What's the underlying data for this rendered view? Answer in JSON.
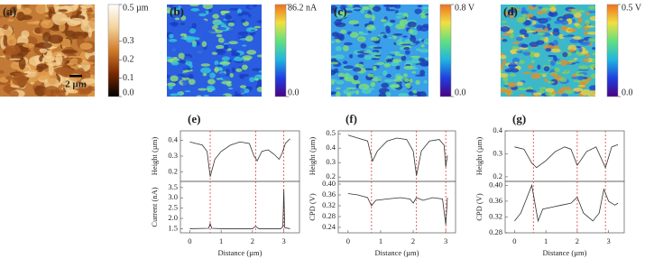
{
  "images": [
    {
      "label": "(a)",
      "scale_bar": "2 µm",
      "clim": [
        0,
        0.5
      ],
      "cmap": [
        "#000000",
        "#7a2a00",
        "#d07a2a",
        "#f3d39c",
        "#ffffff"
      ],
      "cticks": [
        {
          "value": 0.5,
          "label": "0.5 µm"
        },
        0.3,
        0.2,
        0.1,
        {
          "value": 0,
          "label": "0.0"
        }
      ]
    },
    {
      "label": "(b)",
      "clim": [
        0,
        86.2
      ],
      "cmap": [
        "#4b0082",
        "#1f3fe0",
        "#1fb5e0",
        "#60e080",
        "#f0e040",
        "#f07020"
      ],
      "cticks": [
        {
          "value": 86.2,
          "label": "86.2 nA"
        },
        {
          "value": 0,
          "label": "0.0"
        }
      ]
    },
    {
      "label": "(c)",
      "clim": [
        0,
        0.8
      ],
      "cmap": [
        "#4b0082",
        "#1f3fe0",
        "#1fb5e0",
        "#60e080",
        "#f0e040",
        "#f07020"
      ],
      "cticks": [
        {
          "value": 0.8,
          "label": "0.8 V"
        },
        {
          "value": 0,
          "label": "0.0"
        }
      ]
    },
    {
      "label": "(d)",
      "clim": [
        0,
        0.5
      ],
      "cmap": [
        "#4b0082",
        "#1f3fe0",
        "#1fb5e0",
        "#60e080",
        "#f0e040",
        "#f07020"
      ],
      "cticks": [
        {
          "value": 0.5,
          "label": "0.5 V"
        },
        {
          "value": 0,
          "label": "0.0"
        }
      ]
    }
  ],
  "chart_data": [
    {
      "type": "line",
      "title": "(e)",
      "ylabel": "Height (µm)",
      "xlim": [
        -0.3,
        3.5
      ],
      "ylim": [
        0.14,
        0.46
      ],
      "yticks": [
        0.2,
        0.3,
        0.4
      ],
      "vlines": [
        0.65,
        2.1,
        3.0
      ],
      "vline_color": "#e04040",
      "color": "#333333",
      "x": [
        0,
        0.2,
        0.4,
        0.55,
        0.65,
        0.8,
        1.0,
        1.3,
        1.6,
        1.9,
        2.05,
        2.15,
        2.3,
        2.5,
        2.7,
        2.85,
        2.95,
        3.05,
        3.2
      ],
      "values": [
        0.39,
        0.38,
        0.37,
        0.33,
        0.17,
        0.28,
        0.33,
        0.37,
        0.39,
        0.38,
        0.3,
        0.27,
        0.33,
        0.34,
        0.31,
        0.28,
        0.32,
        0.38,
        0.41
      ]
    },
    {
      "type": "line",
      "ylabel": "Current (nA)",
      "xlabel": "Distance (µm)",
      "xlim": [
        -0.3,
        3.5
      ],
      "ylim": [
        1.3,
        3.8
      ],
      "yticks": [
        1.5,
        {
          "value": 2,
          "label": "2.0"
        },
        2.5,
        {
          "value": 3,
          "label": "3.0"
        },
        3.5
      ],
      "xticks": [
        0,
        1,
        2,
        3
      ],
      "vlines": [
        0.65,
        2.1,
        3.0
      ],
      "vline_color": "#e04040",
      "color": "#333333",
      "x": [
        0,
        0.6,
        0.65,
        0.7,
        1.0,
        2.0,
        2.1,
        2.2,
        2.9,
        2.97,
        3.0,
        3.03,
        3.2
      ],
      "values": [
        1.5,
        1.52,
        1.75,
        1.52,
        1.5,
        1.5,
        1.62,
        1.5,
        1.5,
        1.6,
        3.4,
        1.55,
        1.5
      ]
    },
    {
      "type": "line",
      "title": "(f)",
      "ylabel": "Height (µm)",
      "xlim": [
        -0.3,
        3.3
      ],
      "ylim": [
        0.17,
        0.52
      ],
      "yticks": [
        0.2,
        0.3,
        0.4,
        0.5
      ],
      "vlines": [
        0.72,
        2.1,
        3.0
      ],
      "vline_color": "#e04040",
      "color": "#333333",
      "x": [
        0,
        0.3,
        0.6,
        0.75,
        0.9,
        1.2,
        1.5,
        1.8,
        2.0,
        2.1,
        2.25,
        2.5,
        2.8,
        2.95,
        3.0,
        3.05
      ],
      "values": [
        0.49,
        0.47,
        0.45,
        0.31,
        0.38,
        0.45,
        0.47,
        0.46,
        0.38,
        0.21,
        0.38,
        0.45,
        0.46,
        0.42,
        0.27,
        0.35
      ]
    },
    {
      "type": "line",
      "ylabel": "CPD (V)",
      "xlabel": "Distance (µm)",
      "xlim": [
        -0.3,
        3.3
      ],
      "ylim": [
        0.22,
        0.41
      ],
      "yticks": [
        0.24,
        0.28,
        0.32,
        0.36,
        {
          "value": 0.4,
          "label": "0.40"
        }
      ],
      "xticks": [
        0,
        1,
        2,
        3
      ],
      "vlines": [
        0.72,
        2.1,
        3.0
      ],
      "vline_color": "#e04040",
      "color": "#333333",
      "x": [
        0,
        0.3,
        0.6,
        0.72,
        0.85,
        1.2,
        1.6,
        1.9,
        2.0,
        2.1,
        2.3,
        2.6,
        2.9,
        3.0,
        3.05
      ],
      "values": [
        0.365,
        0.36,
        0.35,
        0.32,
        0.34,
        0.345,
        0.35,
        0.345,
        0.33,
        0.35,
        0.34,
        0.35,
        0.345,
        0.25,
        0.35
      ]
    },
    {
      "type": "line",
      "title": "(g)",
      "ylabel": "Height (µm)",
      "xlim": [
        -0.3,
        3.5
      ],
      "ylim": [
        0.18,
        0.4
      ],
      "yticks": [
        0.2,
        0.3,
        0.4
      ],
      "vlines": [
        0.6,
        2.0,
        2.9
      ],
      "vline_color": "#e04040",
      "color": "#333333",
      "x": [
        0,
        0.3,
        0.55,
        0.7,
        1.0,
        1.3,
        1.6,
        1.8,
        2.0,
        2.3,
        2.6,
        2.9,
        3.1,
        3.3
      ],
      "values": [
        0.33,
        0.32,
        0.26,
        0.24,
        0.27,
        0.31,
        0.33,
        0.32,
        0.25,
        0.31,
        0.33,
        0.24,
        0.33,
        0.34
      ]
    },
    {
      "type": "line",
      "ylabel": "CPD (V)",
      "xlabel": "Distance (µm)",
      "xlim": [
        -0.3,
        3.5
      ],
      "ylim": [
        0.28,
        0.41
      ],
      "yticks": [
        0.28,
        0.32,
        0.36,
        {
          "value": 0.4,
          "label": "0.40"
        }
      ],
      "xticks": [
        0,
        1,
        2,
        3
      ],
      "vlines": [
        0.6,
        2.0,
        2.9
      ],
      "vline_color": "#e04040",
      "color": "#333333",
      "x": [
        0,
        0.2,
        0.4,
        0.55,
        0.75,
        0.9,
        1.2,
        1.5,
        1.8,
        2.0,
        2.2,
        2.5,
        2.7,
        2.85,
        3.0,
        3.2,
        3.3
      ],
      "values": [
        0.31,
        0.33,
        0.37,
        0.4,
        0.31,
        0.34,
        0.345,
        0.35,
        0.355,
        0.37,
        0.33,
        0.31,
        0.33,
        0.39,
        0.36,
        0.35,
        0.355
      ]
    }
  ]
}
